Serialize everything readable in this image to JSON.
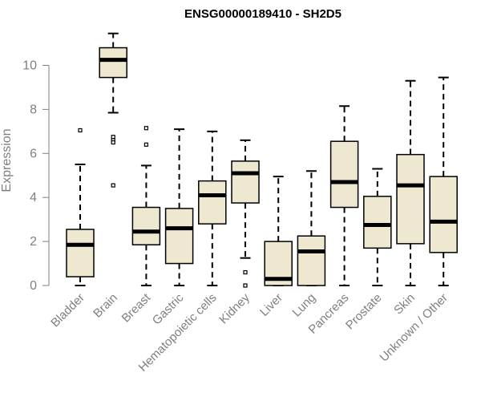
{
  "chart_data": {
    "type": "box",
    "title": "ENSG00000189410 - SH2D5",
    "ylabel": "Expression",
    "ylim": [
      0,
      11.5
    ],
    "yticks": [
      0,
      2,
      4,
      6,
      8,
      10
    ],
    "box_fill": "#efe8d0",
    "categories": [
      "Bladder",
      "Brain",
      "Breast",
      "Gastric",
      "Hematopoietic cells",
      "Kidney",
      "Liver",
      "Lung",
      "Pancreas",
      "Prostate",
      "Skin",
      "Unknown / Other"
    ],
    "boxes": [
      {
        "min": 0.0,
        "q1": 0.4,
        "median": 1.85,
        "q3": 2.55,
        "max": 5.5,
        "outliers": [
          7.05
        ]
      },
      {
        "min": 7.85,
        "q1": 9.45,
        "median": 10.25,
        "q3": 10.8,
        "max": 11.45,
        "outliers": [
          6.75,
          6.6,
          6.5,
          4.55
        ]
      },
      {
        "min": 0.0,
        "q1": 1.85,
        "median": 2.45,
        "q3": 3.55,
        "max": 5.45,
        "outliers": [
          7.15,
          6.4
        ]
      },
      {
        "min": 0.0,
        "q1": 1.0,
        "median": 2.6,
        "q3": 3.5,
        "max": 7.1,
        "outliers": []
      },
      {
        "min": 0.0,
        "q1": 2.8,
        "median": 4.1,
        "q3": 4.75,
        "max": 7.0,
        "outliers": []
      },
      {
        "min": 1.25,
        "q1": 3.75,
        "median": 5.1,
        "q3": 5.65,
        "max": 6.6,
        "outliers": [
          0.6,
          0.0
        ]
      },
      {
        "min": 0.0,
        "q1": 0.0,
        "median": 0.3,
        "q3": 2.0,
        "max": 4.95,
        "outliers": []
      },
      {
        "min": 0.0,
        "q1": 0.0,
        "median": 1.55,
        "q3": 2.25,
        "max": 5.2,
        "outliers": []
      },
      {
        "min": 0.0,
        "q1": 3.55,
        "median": 4.7,
        "q3": 6.55,
        "max": 8.15,
        "outliers": []
      },
      {
        "min": 0.0,
        "q1": 1.7,
        "median": 2.75,
        "q3": 4.05,
        "max": 5.3,
        "outliers": []
      },
      {
        "min": 0.0,
        "q1": 1.9,
        "median": 4.55,
        "q3": 5.95,
        "max": 9.3,
        "outliers": []
      },
      {
        "min": 0.0,
        "q1": 1.5,
        "median": 2.9,
        "q3": 4.95,
        "max": 9.45,
        "outliers": []
      }
    ]
  }
}
